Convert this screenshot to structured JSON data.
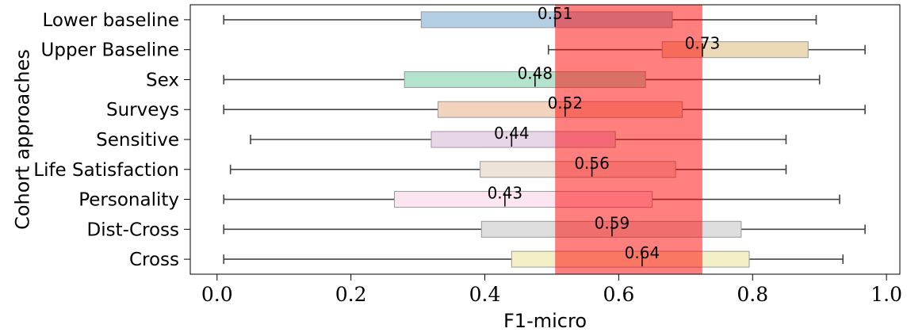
{
  "chart_data": {
    "type": "box",
    "xlabel": "F1-micro",
    "ylabel": "Cohort approaches",
    "xlim": [
      -0.04,
      1.02
    ],
    "xticks": [
      "0.0",
      "0.2",
      "0.4",
      "0.6",
      "0.8",
      "1.0"
    ],
    "xtick_values": [
      0.0,
      0.2,
      0.4,
      0.6,
      0.8,
      1.0
    ],
    "highlight_band": {
      "x_start": 0.505,
      "x_end": 0.725,
      "color": "#ff0000",
      "opacity": 0.5
    },
    "grid": false,
    "legend": "none",
    "series": [
      {
        "name": "Lower baseline",
        "whisker_low": 0.01,
        "q1": 0.305,
        "median": 0.505,
        "q3": 0.68,
        "whisker_high": 0.895,
        "median_label": "0.51",
        "color": "#b3cde3"
      },
      {
        "name": "Upper Baseline",
        "whisker_low": 0.495,
        "q1": 0.665,
        "median": 0.725,
        "q3": 0.883,
        "whisker_high": 0.968,
        "median_label": "0.73",
        "color": "#ecd9b6"
      },
      {
        "name": "Sex",
        "whisker_low": 0.01,
        "q1": 0.28,
        "median": 0.475,
        "q3": 0.64,
        "whisker_high": 0.9,
        "median_label": "0.48",
        "color": "#b3e2cd"
      },
      {
        "name": "Surveys",
        "whisker_low": 0.01,
        "q1": 0.33,
        "median": 0.52,
        "q3": 0.695,
        "whisker_high": 0.968,
        "median_label": "0.52",
        "color": "#f1d3be"
      },
      {
        "name": "Sensitive",
        "whisker_low": 0.05,
        "q1": 0.32,
        "median": 0.44,
        "q3": 0.595,
        "whisker_high": 0.85,
        "median_label": "0.44",
        "color": "#e8d5e8"
      },
      {
        "name": "Life Satisfaction",
        "whisker_low": 0.02,
        "q1": 0.393,
        "median": 0.56,
        "q3": 0.685,
        "whisker_high": 0.85,
        "median_label": "0.56",
        "color": "#ede3d8"
      },
      {
        "name": "Personality",
        "whisker_low": 0.01,
        "q1": 0.265,
        "median": 0.43,
        "q3": 0.65,
        "whisker_high": 0.93,
        "median_label": "0.43",
        "color": "#fbe5f1"
      },
      {
        "name": "Dist-Cross",
        "whisker_low": 0.01,
        "q1": 0.395,
        "median": 0.59,
        "q3": 0.783,
        "whisker_high": 0.968,
        "median_label": "0.59",
        "color": "#dedede"
      },
      {
        "name": "Cross",
        "whisker_low": 0.01,
        "q1": 0.44,
        "median": 0.635,
        "q3": 0.795,
        "whisker_high": 0.935,
        "median_label": "0.64",
        "color": "#f3efc6"
      }
    ]
  }
}
